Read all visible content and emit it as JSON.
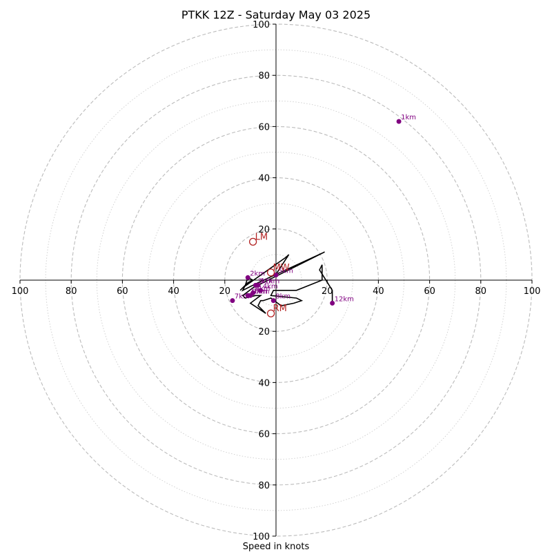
{
  "chart_data": {
    "type": "hodograph",
    "title": "PTKK 12Z - Saturday May 03 2025",
    "xlabel": "Speed in knots",
    "ring_max": 100,
    "ring_step_major": 20,
    "ring_step_minor": 10,
    "x_tick_labels": [
      "100",
      "80",
      "60",
      "40",
      "20",
      "20",
      "40",
      "60",
      "80",
      "100"
    ],
    "x_tick_values": [
      -100,
      -80,
      -60,
      -40,
      -20,
      20,
      40,
      60,
      80,
      100
    ],
    "y_tick_labels": [
      "100",
      "80",
      "60",
      "40",
      "20",
      "20",
      "40",
      "60",
      "80",
      "100"
    ],
    "y_tick_values": [
      100,
      80,
      60,
      40,
      20,
      -20,
      -40,
      -60,
      -80,
      -100
    ],
    "colors": {
      "trace": "#000000",
      "points": "#800080",
      "motion": "#b22222",
      "grid_major": "#bbbbbb",
      "grid_minor": "#cccccc"
    },
    "trace": [
      [
        -0.5,
        1.5
      ],
      [
        5,
        10
      ],
      [
        4,
        9
      ],
      [
        -13,
        -3
      ],
      [
        -14,
        -4
      ],
      [
        -11,
        -1
      ],
      [
        -9,
        0
      ],
      [
        -11,
        1
      ],
      [
        -12,
        -2
      ],
      [
        -13,
        -4
      ],
      [
        -7,
        -1
      ],
      [
        19,
        11
      ],
      [
        -9,
        -3
      ],
      [
        -13,
        -6
      ],
      [
        -12,
        -7
      ],
      [
        -8,
        -6
      ],
      [
        -6,
        -6
      ],
      [
        -10,
        -9
      ],
      [
        -4,
        -13
      ],
      [
        -7,
        -10
      ],
      [
        -6,
        -8
      ],
      [
        -5,
        -8
      ],
      [
        -2,
        -7
      ],
      [
        2,
        -10
      ],
      [
        7,
        -9
      ],
      [
        10,
        -8
      ],
      [
        8,
        -7
      ],
      [
        -2,
        -6
      ],
      [
        -1,
        -4
      ],
      [
        8,
        -4
      ],
      [
        18,
        0
      ],
      [
        18,
        6
      ],
      [
        17,
        4
      ],
      [
        22,
        -4
      ],
      [
        22,
        -9
      ]
    ],
    "height_points": [
      {
        "label": "1km",
        "x": 48,
        "y": 62
      },
      {
        "label": "2km",
        "x": -11,
        "y": 1
      },
      {
        "label": "3km",
        "x": -8,
        "y": -2
      },
      {
        "label": "4km",
        "x": -6,
        "y": -4
      },
      {
        "label": "5km",
        "x": 0,
        "y": 2
      },
      {
        "label": "6km",
        "x": -9,
        "y": -5
      },
      {
        "label": "7km",
        "x": -17,
        "y": -8
      },
      {
        "label": "8km",
        "x": -1,
        "y": -8
      },
      {
        "label": "9km",
        "x": -10,
        "y": -6
      },
      {
        "label": "10km",
        "x": -11,
        "y": -6
      },
      {
        "label": "11km",
        "x": -7,
        "y": -2
      },
      {
        "label": "12km",
        "x": 22,
        "y": -9
      }
    ],
    "storm_motions": [
      {
        "label": "LM",
        "x": -9,
        "y": 15
      },
      {
        "label": "MW",
        "x": -2,
        "y": 3
      },
      {
        "label": "RM",
        "x": -2,
        "y": -13
      }
    ]
  }
}
